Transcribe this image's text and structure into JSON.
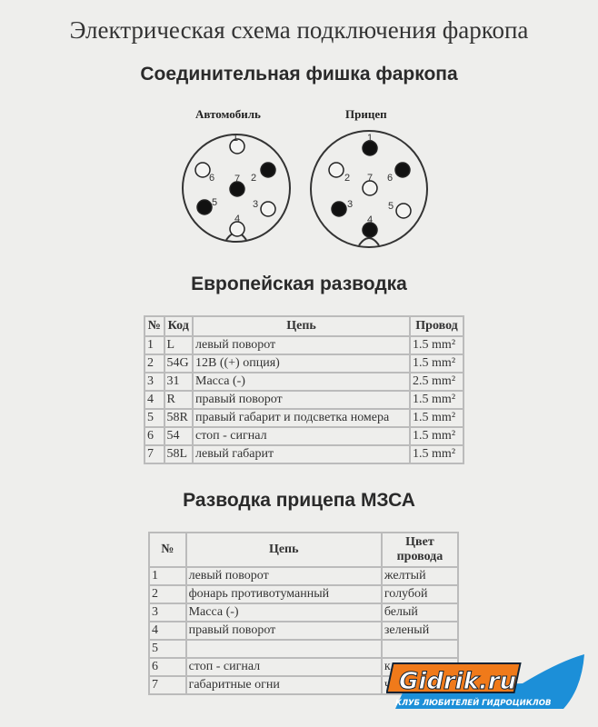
{
  "title": "Электрическая схема подключения фаркопа",
  "connector_title": "Соединительная фишка фаркопа",
  "connectors": [
    {
      "label": "Автомобиль",
      "pins": [
        {
          "n": "1",
          "filled": false
        },
        {
          "n": "2",
          "filled": true
        },
        {
          "n": "3",
          "filled": false
        },
        {
          "n": "4",
          "filled": false
        },
        {
          "n": "5",
          "filled": true
        },
        {
          "n": "6",
          "filled": false
        },
        {
          "n": "7",
          "filled": true
        }
      ]
    },
    {
      "label": "Прицеп",
      "pins": [
        {
          "n": "1",
          "filled": true
        },
        {
          "n": "2",
          "filled": false
        },
        {
          "n": "3",
          "filled": true
        },
        {
          "n": "4",
          "filled": true
        },
        {
          "n": "5",
          "filled": false
        },
        {
          "n": "6",
          "filled": true
        },
        {
          "n": "7",
          "filled": false
        }
      ]
    }
  ],
  "euro": {
    "title": "Европейская разводка",
    "headers": [
      "№",
      "Код",
      "Цепь",
      "Провод"
    ],
    "rows": [
      [
        "1",
        "L",
        "левый поворот",
        "1.5 mm²"
      ],
      [
        "2",
        "54G",
        "12В ((+) опция)",
        "1.5 mm²"
      ],
      [
        "3",
        "31",
        "Масса (-)",
        "2.5 mm²"
      ],
      [
        "4",
        "R",
        "правый поворот",
        "1.5 mm²"
      ],
      [
        "5",
        "58R",
        "правый габарит и подсветка номера",
        "1.5 mm²"
      ],
      [
        "6",
        "54",
        "стоп - сигнал",
        "1.5 mm²"
      ],
      [
        "7",
        "58L",
        "левый габарит",
        "1.5 mm²"
      ]
    ]
  },
  "mzsa": {
    "title": "Разводка прицепа МЗСА",
    "headers": [
      "№",
      "Цепь",
      "Цвет провода"
    ],
    "rows": [
      [
        "1",
        "левый поворот",
        "желтый"
      ],
      [
        "2",
        "фонарь противотуманный",
        "голубой"
      ],
      [
        "3",
        "Масса (-)",
        "белый"
      ],
      [
        "4",
        "правый поворот",
        "зеленый"
      ],
      [
        "5",
        "",
        ""
      ],
      [
        "6",
        "стоп - сигнал",
        "к"
      ],
      [
        "7",
        "габаритные огни",
        "ч"
      ]
    ]
  },
  "logo": {
    "name": "Gidrik.ru",
    "tagline": "КЛУБ ЛЮБИТЕЛЕЙ ГИДРОЦИКЛОВ",
    "colors": {
      "orange": "#f07a1a",
      "blue": "#1c8fd8"
    }
  }
}
